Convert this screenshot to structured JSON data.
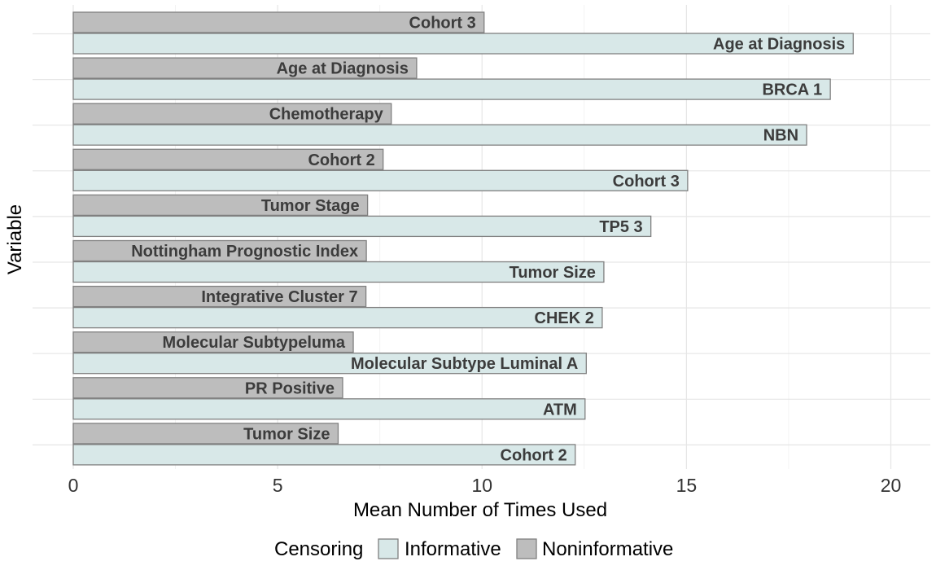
{
  "chart_data": {
    "type": "bar",
    "orientation": "horizontal",
    "xlabel": "Mean Number of Times Used",
    "ylabel": "Variable",
    "xlim": [
      0,
      21
    ],
    "x_ticks": [
      0,
      5,
      10,
      15,
      20
    ],
    "grid": true,
    "legend": {
      "title": "Censoring",
      "position": "bottom",
      "entries": [
        {
          "name": "Informative",
          "color": "#d8e8e8"
        },
        {
          "name": "Noninformative",
          "color": "#bdbdbd"
        }
      ]
    },
    "groups": [
      {
        "noninformative": {
          "label": "Cohort 3",
          "value": 10.05
        },
        "informative": {
          "label": "Age at Diagnosis",
          "value": 19.08
        }
      },
      {
        "noninformative": {
          "label": "Age at Diagnosis",
          "value": 8.4
        },
        "informative": {
          "label": "BRCA 1",
          "value": 18.52
        }
      },
      {
        "noninformative": {
          "label": "Chemotherapy",
          "value": 7.78
        },
        "informative": {
          "label": "NBN",
          "value": 17.94
        }
      },
      {
        "noninformative": {
          "label": "Cohort 2",
          "value": 7.58
        },
        "informative": {
          "label": "Cohort 3",
          "value": 15.03
        }
      },
      {
        "noninformative": {
          "label": "Tumor Stage",
          "value": 7.2
        },
        "informative": {
          "label": "TP5 3",
          "value": 14.13
        }
      },
      {
        "noninformative": {
          "label": "Nottingham Prognostic Index",
          "value": 7.17
        },
        "informative": {
          "label": "Tumor Size",
          "value": 12.98
        }
      },
      {
        "noninformative": {
          "label": "Integrative Cluster 7",
          "value": 7.16
        },
        "informative": {
          "label": "CHEK 2",
          "value": 12.94
        }
      },
      {
        "noninformative": {
          "label": "Molecular Subtypeluma",
          "value": 6.85
        },
        "informative": {
          "label": "Molecular Subtype Luminal A",
          "value": 12.55
        }
      },
      {
        "noninformative": {
          "label": "PR Positive",
          "value": 6.59
        },
        "informative": {
          "label": "ATM",
          "value": 12.52
        }
      },
      {
        "noninformative": {
          "label": "Tumor Size",
          "value": 6.48
        },
        "informative": {
          "label": "Cohort 2",
          "value": 12.28
        }
      }
    ]
  }
}
